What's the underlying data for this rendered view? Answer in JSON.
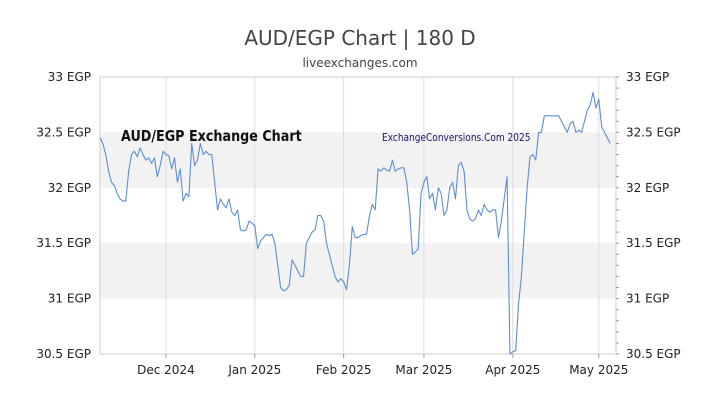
{
  "chart_data": {
    "type": "line",
    "title": "AUD/EGP Chart | 180 D",
    "subtitle": "liveexchanges.com",
    "ylim": [
      30.5,
      33
    ],
    "y_ticks": [
      "30.5 EGP",
      "31 EGP",
      "31.5 EGP",
      "32 EGP",
      "32.5 EGP",
      "33 EGP"
    ],
    "y_tick_values": [
      30.5,
      31,
      31.5,
      32,
      32.5,
      33
    ],
    "x_range": [
      "2024-11-08",
      "2025-05-07"
    ],
    "x_ticks": [
      {
        "label": "Dec 2024",
        "date": "2024-12-01"
      },
      {
        "label": "Jan 2025",
        "date": "2025-01-01"
      },
      {
        "label": "Feb 2025",
        "date": "2025-02-01"
      },
      {
        "label": "Mar 2025",
        "date": "2025-03-01"
      },
      {
        "label": "Apr 2025",
        "date": "2025-04-01"
      },
      {
        "label": "May 2025",
        "date": "2025-05-01"
      }
    ],
    "grid": "alternating horizontal bands, vertical month lines",
    "line_color": "#5b8fd6",
    "band_color": "#f2f2f2",
    "annotations": [
      "AUD/EGP Exchange Chart",
      "ExchangeConversions.Com 2025"
    ],
    "series": [
      {
        "values": [
          [
            "2024-11-08",
            32.45
          ],
          [
            "2024-11-09",
            32.4
          ],
          [
            "2024-11-10",
            32.3
          ],
          [
            "2024-11-11",
            32.15
          ],
          [
            "2024-11-12",
            32.05
          ],
          [
            "2024-11-13",
            32.02
          ],
          [
            "2024-11-14",
            31.95
          ],
          [
            "2024-11-15",
            31.9
          ],
          [
            "2024-11-16",
            31.88
          ],
          [
            "2024-11-17",
            31.88
          ],
          [
            "2024-11-18",
            32.15
          ],
          [
            "2024-11-19",
            32.3
          ],
          [
            "2024-11-20",
            32.33
          ],
          [
            "2024-11-21",
            32.28
          ],
          [
            "2024-11-22",
            32.36
          ],
          [
            "2024-11-23",
            32.3
          ],
          [
            "2024-11-24",
            32.25
          ],
          [
            "2024-11-25",
            32.27
          ],
          [
            "2024-11-26",
            32.22
          ],
          [
            "2024-11-27",
            32.27
          ],
          [
            "2024-11-28",
            32.1
          ],
          [
            "2024-11-29",
            32.2
          ],
          [
            "2024-11-30",
            32.33
          ],
          [
            "2024-12-01",
            32.3
          ],
          [
            "2024-12-02",
            32.29
          ],
          [
            "2024-12-03",
            32.17
          ],
          [
            "2024-12-04",
            32.27
          ],
          [
            "2024-12-05",
            32.05
          ],
          [
            "2024-12-06",
            32.17
          ],
          [
            "2024-12-07",
            31.88
          ],
          [
            "2024-12-08",
            31.95
          ],
          [
            "2024-12-09",
            31.92
          ],
          [
            "2024-12-10",
            32.4
          ],
          [
            "2024-12-11",
            32.2
          ],
          [
            "2024-12-12",
            32.25
          ],
          [
            "2024-12-13",
            32.4
          ],
          [
            "2024-12-14",
            32.3
          ],
          [
            "2024-12-15",
            32.33
          ],
          [
            "2024-12-16",
            32.3
          ],
          [
            "2024-12-17",
            32.3
          ],
          [
            "2024-12-18",
            32.05
          ],
          [
            "2024-12-19",
            31.8
          ],
          [
            "2024-12-20",
            31.9
          ],
          [
            "2024-12-21",
            31.85
          ],
          [
            "2024-12-22",
            31.82
          ],
          [
            "2024-12-23",
            31.9
          ],
          [
            "2024-12-24",
            31.78
          ],
          [
            "2024-12-25",
            31.75
          ],
          [
            "2024-12-26",
            31.8
          ],
          [
            "2024-12-27",
            31.62
          ],
          [
            "2024-12-28",
            31.61
          ],
          [
            "2024-12-29",
            31.62
          ],
          [
            "2024-12-30",
            31.7
          ],
          [
            "2024-12-31",
            31.68
          ],
          [
            "2025-01-01",
            31.66
          ],
          [
            "2025-01-02",
            31.45
          ],
          [
            "2025-01-03",
            31.52
          ],
          [
            "2025-01-04",
            31.55
          ],
          [
            "2025-01-05",
            31.58
          ],
          [
            "2025-01-06",
            31.57
          ],
          [
            "2025-01-07",
            31.58
          ],
          [
            "2025-01-08",
            31.5
          ],
          [
            "2025-01-09",
            31.3
          ],
          [
            "2025-01-10",
            31.1
          ],
          [
            "2025-01-11",
            31.07
          ],
          [
            "2025-01-12",
            31.08
          ],
          [
            "2025-01-13",
            31.12
          ],
          [
            "2025-01-14",
            31.35
          ],
          [
            "2025-01-15",
            31.3
          ],
          [
            "2025-01-16",
            31.25
          ],
          [
            "2025-01-17",
            31.2
          ],
          [
            "2025-01-18",
            31.2
          ],
          [
            "2025-01-19",
            31.5
          ],
          [
            "2025-01-20",
            31.55
          ],
          [
            "2025-01-21",
            31.6
          ],
          [
            "2025-01-22",
            31.62
          ],
          [
            "2025-01-23",
            31.75
          ],
          [
            "2025-01-24",
            31.75
          ],
          [
            "2025-01-25",
            31.7
          ],
          [
            "2025-01-26",
            31.5
          ],
          [
            "2025-01-27",
            31.4
          ],
          [
            "2025-01-28",
            31.3
          ],
          [
            "2025-01-29",
            31.2
          ],
          [
            "2025-01-30",
            31.15
          ],
          [
            "2025-01-31",
            31.18
          ],
          [
            "2025-02-01",
            31.15
          ],
          [
            "2025-02-02",
            31.08
          ],
          [
            "2025-02-03",
            31.3
          ],
          [
            "2025-02-04",
            31.65
          ],
          [
            "2025-02-05",
            31.55
          ],
          [
            "2025-02-06",
            31.55
          ],
          [
            "2025-02-07",
            31.57
          ],
          [
            "2025-02-08",
            31.58
          ],
          [
            "2025-02-09",
            31.58
          ],
          [
            "2025-02-10",
            31.75
          ],
          [
            "2025-02-11",
            31.85
          ],
          [
            "2025-02-12",
            31.8
          ],
          [
            "2025-02-13",
            32.17
          ],
          [
            "2025-02-14",
            32.15
          ],
          [
            "2025-02-15",
            32.18
          ],
          [
            "2025-02-16",
            32.16
          ],
          [
            "2025-02-17",
            32.15
          ],
          [
            "2025-02-18",
            32.25
          ],
          [
            "2025-02-19",
            32.15
          ],
          [
            "2025-02-20",
            32.17
          ],
          [
            "2025-02-21",
            32.18
          ],
          [
            "2025-02-22",
            32.18
          ],
          [
            "2025-02-23",
            32.05
          ],
          [
            "2025-02-24",
            31.8
          ],
          [
            "2025-02-25",
            31.4
          ],
          [
            "2025-02-26",
            31.42
          ],
          [
            "2025-02-27",
            31.45
          ],
          [
            "2025-02-28",
            31.95
          ],
          [
            "2025-03-01",
            32.05
          ],
          [
            "2025-03-02",
            32.1
          ],
          [
            "2025-03-03",
            31.9
          ],
          [
            "2025-03-04",
            31.95
          ],
          [
            "2025-03-05",
            31.8
          ],
          [
            "2025-03-06",
            32.0
          ],
          [
            "2025-03-07",
            31.95
          ],
          [
            "2025-03-08",
            31.75
          ],
          [
            "2025-03-09",
            31.8
          ],
          [
            "2025-03-10",
            32.0
          ],
          [
            "2025-03-11",
            32.05
          ],
          [
            "2025-03-12",
            31.9
          ],
          [
            "2025-03-13",
            32.2
          ],
          [
            "2025-03-14",
            32.23
          ],
          [
            "2025-03-15",
            32.15
          ],
          [
            "2025-03-16",
            31.8
          ],
          [
            "2025-03-17",
            31.72
          ],
          [
            "2025-03-18",
            31.7
          ],
          [
            "2025-03-19",
            31.72
          ],
          [
            "2025-03-20",
            31.8
          ],
          [
            "2025-03-21",
            31.75
          ],
          [
            "2025-03-22",
            31.85
          ],
          [
            "2025-03-23",
            31.8
          ],
          [
            "2025-03-24",
            31.78
          ],
          [
            "2025-03-25",
            31.8
          ],
          [
            "2025-03-26",
            31.8
          ],
          [
            "2025-03-27",
            31.55
          ],
          [
            "2025-03-28",
            31.7
          ],
          [
            "2025-03-29",
            31.9
          ],
          [
            "2025-03-30",
            32.1
          ],
          [
            "2025-03-31",
            30.5
          ],
          [
            "2025-04-01",
            30.52
          ],
          [
            "2025-04-02",
            30.53
          ],
          [
            "2025-04-03",
            30.95
          ],
          [
            "2025-04-04",
            31.2
          ],
          [
            "2025-04-05",
            31.6
          ],
          [
            "2025-04-06",
            32.0
          ],
          [
            "2025-04-07",
            32.28
          ],
          [
            "2025-04-08",
            32.3
          ],
          [
            "2025-04-09",
            32.25
          ],
          [
            "2025-04-10",
            32.5
          ],
          [
            "2025-04-11",
            32.5
          ],
          [
            "2025-04-12",
            32.65
          ],
          [
            "2025-04-13",
            32.65
          ],
          [
            "2025-04-14",
            32.65
          ],
          [
            "2025-04-15",
            32.65
          ],
          [
            "2025-04-16",
            32.65
          ],
          [
            "2025-04-17",
            32.65
          ],
          [
            "2025-04-18",
            32.6
          ],
          [
            "2025-04-19",
            32.55
          ],
          [
            "2025-04-20",
            32.5
          ],
          [
            "2025-04-21",
            32.58
          ],
          [
            "2025-04-22",
            32.6
          ],
          [
            "2025-04-23",
            32.5
          ],
          [
            "2025-04-24",
            32.52
          ],
          [
            "2025-04-25",
            32.5
          ],
          [
            "2025-04-26",
            32.6
          ],
          [
            "2025-04-27",
            32.7
          ],
          [
            "2025-04-28",
            32.75
          ],
          [
            "2025-04-29",
            32.86
          ],
          [
            "2025-04-30",
            32.72
          ],
          [
            "2025-05-01",
            32.8
          ],
          [
            "2025-05-02",
            32.55
          ],
          [
            "2025-05-03",
            32.5
          ],
          [
            "2025-05-04",
            32.45
          ],
          [
            "2025-05-05",
            32.4
          ]
        ]
      }
    ]
  }
}
